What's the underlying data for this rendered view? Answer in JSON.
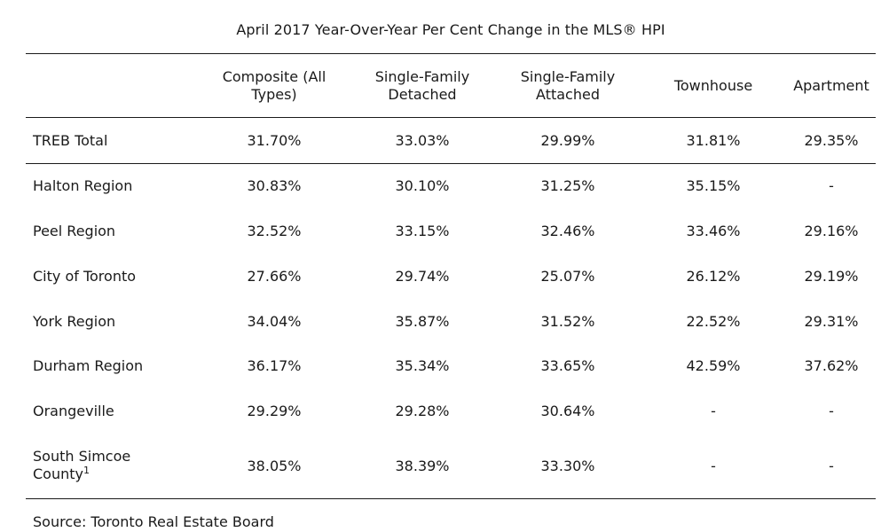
{
  "table": {
    "title": "April 2017 Year-Over-Year Per Cent Change in the MLS® HPI",
    "headers": [
      [
        "Composite (All",
        "Types)"
      ],
      [
        "Single-Family",
        "Detached"
      ],
      [
        "Single-Family",
        "Attached"
      ],
      [
        "Townhouse"
      ],
      [
        "Apartment"
      ]
    ],
    "total_row": {
      "label": "TREB Total",
      "values": [
        "31.70%",
        "33.03%",
        "29.99%",
        "31.81%",
        "29.35%"
      ]
    },
    "rows": [
      {
        "label": "Halton Region",
        "values": [
          "30.83%",
          "30.10%",
          "31.25%",
          "35.15%",
          "-"
        ]
      },
      {
        "label": "Peel Region",
        "values": [
          "32.52%",
          "33.15%",
          "32.46%",
          "33.46%",
          "29.16%"
        ]
      },
      {
        "label": "City of Toronto",
        "values": [
          "27.66%",
          "29.74%",
          "25.07%",
          "26.12%",
          "29.19%"
        ]
      },
      {
        "label": "York Region",
        "values": [
          "34.04%",
          "35.87%",
          "31.52%",
          "22.52%",
          "29.31%"
        ]
      },
      {
        "label": "Durham Region",
        "values": [
          "36.17%",
          "35.34%",
          "33.65%",
          "42.59%",
          "37.62%"
        ]
      },
      {
        "label": "Orangeville",
        "values": [
          "29.29%",
          "29.28%",
          "30.64%",
          "-",
          "-"
        ]
      },
      {
        "label": [
          "South Simcoe",
          "County"
        ],
        "footnote": "1",
        "values": [
          "38.05%",
          "38.39%",
          "33.30%",
          "-",
          "-"
        ]
      }
    ],
    "source": "Source: Toronto Real Estate Board"
  }
}
